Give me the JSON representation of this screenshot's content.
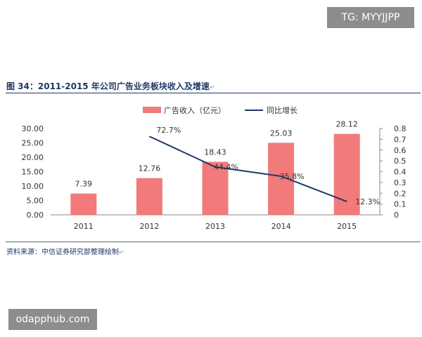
{
  "watermarks": {
    "top": "TG: MYYJJPP",
    "bottom": "odapphub.com"
  },
  "figure": {
    "title": "图 34：2011-2015 年公司广告业务板块收入及增速",
    "source": "资料来源：中信证券研究部整理绘制",
    "para_mark": "↵"
  },
  "chart_data": {
    "type": "bar",
    "categories": [
      "2011",
      "2012",
      "2013",
      "2014",
      "2015"
    ],
    "series": [
      {
        "name": "广告收入（亿元）",
        "type": "bar",
        "axis": "left",
        "values": [
          7.39,
          12.76,
          18.43,
          25.03,
          28.12
        ],
        "labels": [
          "7.39",
          "12.76",
          "18.43",
          "25.03",
          "28.12"
        ],
        "color": "#f27a7a"
      },
      {
        "name": "同比增长",
        "type": "line",
        "axis": "right",
        "values": [
          null,
          0.727,
          0.444,
          0.358,
          0.123
        ],
        "labels": [
          "",
          "72.7%",
          "44.4%",
          "35.8%",
          "12.3%"
        ],
        "color": "#1f3864"
      }
    ],
    "y_left": {
      "min": 0,
      "max": 30,
      "ticks": [
        "0.00",
        "5.00",
        "10.00",
        "15.00",
        "20.00",
        "25.00",
        "30.00"
      ]
    },
    "y_right": {
      "min": 0,
      "max": 0.8,
      "ticks": [
        "0",
        "0.1",
        "0.2",
        "0.3",
        "0.4",
        "0.5",
        "0.6",
        "0.7",
        "0.8"
      ]
    },
    "legend_position": "top-center",
    "grid": false
  }
}
